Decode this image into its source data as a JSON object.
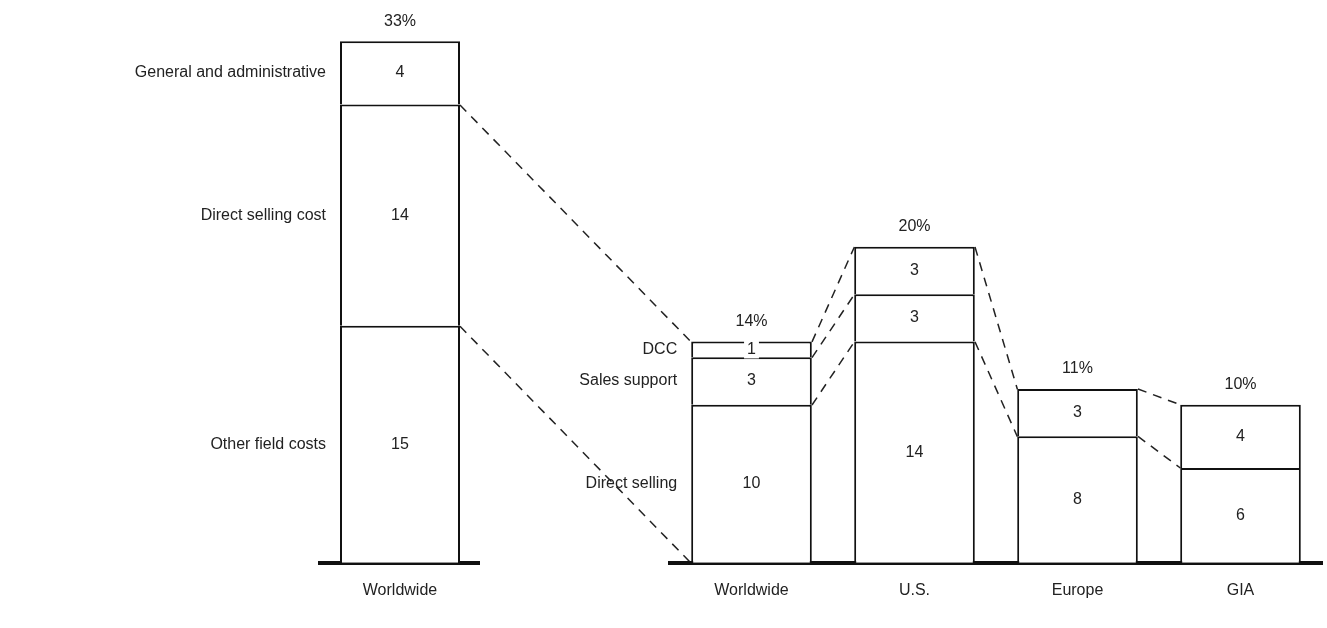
{
  "chart_data": [
    {
      "type": "bar",
      "stacked": true,
      "categories": [
        "Worldwide"
      ],
      "series": [
        {
          "name": "Other field costs",
          "color": "#ffffff",
          "values": [
            15
          ]
        },
        {
          "name": "Direct selling cost",
          "color": "#ffffff",
          "values": [
            14
          ]
        },
        {
          "name": "General and administrative",
          "color": "#ffffff",
          "values": [
            4
          ]
        }
      ],
      "tick_labels": "x",
      "data_labels": true,
      "totals": [
        "33%"
      ]
    },
    {
      "type": "bar",
      "stacked": true,
      "categories": [
        "Worldwide",
        "U.S.",
        "Europe",
        "GIA"
      ],
      "series": [
        {
          "name": "Direct selling",
          "color": "#ffffff",
          "values": [
            10,
            14,
            8,
            6
          ]
        },
        {
          "name": "Sales support",
          "color": "#ffffff",
          "values": [
            3,
            3,
            3,
            4
          ]
        },
        {
          "name": "DCC",
          "color": "#ffffff",
          "values": [
            1,
            3,
            null,
            null
          ]
        }
      ],
      "tick_labels": "x",
      "data_labels": true,
      "totals": [
        "14%",
        "20%",
        "11%",
        "10%"
      ]
    }
  ]
}
